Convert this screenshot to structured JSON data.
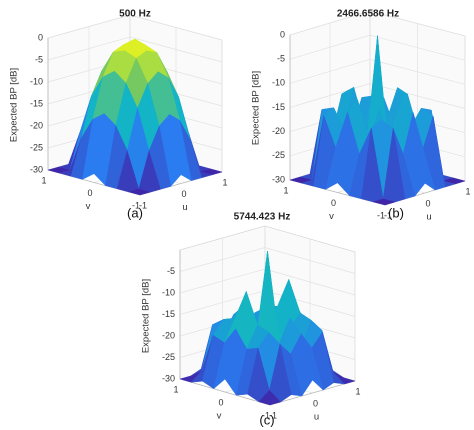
{
  "chart_data": [
    {
      "type": "surface",
      "title": "500 Hz",
      "caption": "(a)",
      "zlabel": "Expected BP [dB]",
      "xlabel": "u",
      "ylabel": "v",
      "xlim": [
        -1,
        1
      ],
      "ylim": [
        -1,
        1
      ],
      "zlim": [
        -30,
        0
      ],
      "xticks": [
        -1,
        0,
        1
      ],
      "yticks": [
        1,
        0,
        -1
      ],
      "zticks": [
        0,
        -5,
        -10,
        -15,
        -20,
        -25,
        -30
      ],
      "colormap": [
        "#3e26a8",
        "#2a7cf0",
        "#12b4c6",
        "#7dcb5a",
        "#f9fb15"
      ],
      "x": [
        -1,
        -0.75,
        -0.5,
        -0.25,
        0,
        0.25,
        0.5,
        0.75,
        1
      ],
      "y": [
        1,
        0.75,
        0.5,
        0.25,
        0,
        -0.25,
        -0.5,
        -0.75,
        -1
      ],
      "z": [
        [
          -30,
          -30,
          -30,
          -30,
          -28,
          -30,
          -30,
          -30,
          -30
        ],
        [
          -30,
          -30,
          -22,
          -17,
          -15,
          -17,
          -22,
          -30,
          -30
        ],
        [
          -30,
          -22,
          -13,
          -8,
          -6,
          -8,
          -13,
          -22,
          -30
        ],
        [
          -30,
          -17,
          -8,
          -3,
          -2,
          -3,
          -8,
          -17,
          -30
        ],
        [
          -28,
          -15,
          -6,
          -2,
          0,
          -2,
          -6,
          -15,
          -28
        ],
        [
          -30,
          -17,
          -8,
          -3,
          -2,
          -3,
          -8,
          -17,
          -30
        ],
        [
          -30,
          -22,
          -13,
          -8,
          -6,
          -8,
          -13,
          -22,
          -30
        ],
        [
          -30,
          -30,
          -22,
          -17,
          -15,
          -17,
          -22,
          -30,
          -30
        ],
        [
          -30,
          -30,
          -30,
          -30,
          -28,
          -30,
          -30,
          -30,
          -30
        ]
      ]
    },
    {
      "type": "surface",
      "title": "2466.6586 Hz",
      "caption": "(b)",
      "zlabel": "Expected BP [dB]",
      "xlabel": "u",
      "ylabel": "v",
      "xlim": [
        -1,
        1
      ],
      "ylim": [
        -1,
        1
      ],
      "zlim": [
        -30,
        0
      ],
      "xticks": [
        -1,
        0,
        1
      ],
      "yticks": [
        1,
        0,
        -1
      ],
      "zticks": [
        0,
        -5,
        -10,
        -15,
        -20,
        -25,
        -30
      ],
      "colormap": [
        "#3e26a8",
        "#2a7cf0",
        "#12b4c6",
        "#7dcb5a",
        "#f9fb15"
      ],
      "x": [
        -1,
        -0.75,
        -0.5,
        -0.25,
        0,
        0.25,
        0.5,
        0.75,
        1
      ],
      "y": [
        1,
        0.75,
        0.5,
        0.25,
        0,
        -0.25,
        -0.5,
        -0.75,
        -1
      ],
      "z": [
        [
          -30,
          -30,
          -30,
          -30,
          -28,
          -30,
          -30,
          -30,
          -30
        ],
        [
          -30,
          -30,
          -16,
          -22,
          -14,
          -22,
          -16,
          -30,
          -30
        ],
        [
          -30,
          -16,
          -15,
          -20,
          -12,
          -20,
          -15,
          -16,
          -30
        ],
        [
          -30,
          -22,
          -20,
          -14,
          -25,
          -14,
          -20,
          -22,
          -30
        ],
        [
          -28,
          -14,
          -12,
          -25,
          0,
          -25,
          -12,
          -14,
          -28
        ],
        [
          -30,
          -22,
          -20,
          -14,
          -25,
          -14,
          -20,
          -22,
          -30
        ],
        [
          -30,
          -16,
          -15,
          -20,
          -12,
          -20,
          -15,
          -16,
          -30
        ],
        [
          -30,
          -30,
          -16,
          -22,
          -14,
          -22,
          -16,
          -30,
          -30
        ],
        [
          -30,
          -30,
          -30,
          -30,
          -28,
          -30,
          -30,
          -30,
          -30
        ]
      ]
    },
    {
      "type": "surface",
      "title": "5744.423 Hz",
      "caption": "(c)",
      "zlabel": "Expected BP [dB]",
      "xlabel": "u",
      "ylabel": "v",
      "xlim": [
        -1,
        1
      ],
      "ylim": [
        -1,
        1
      ],
      "zlim": [
        -30,
        0
      ],
      "xticks": [
        -1,
        0,
        1
      ],
      "yticks": [
        1,
        0,
        -1
      ],
      "zticks": [
        -5,
        -10,
        -15,
        -20,
        -25,
        -30
      ],
      "colormap": [
        "#3e26a8",
        "#2a7cf0",
        "#12b4c6",
        "#7dcb5a",
        "#f9fb15"
      ],
      "x": [
        -1,
        -0.75,
        -0.5,
        -0.25,
        0,
        0.25,
        0.5,
        0.75,
        1
      ],
      "y": [
        1,
        0.75,
        0.5,
        0.25,
        0,
        -0.25,
        -0.5,
        -0.75,
        -1
      ],
      "z": [
        [
          -30,
          -30,
          -29,
          -30,
          -27,
          -30,
          -29,
          -30,
          -30
        ],
        [
          -30,
          -28,
          -18,
          -21,
          -17,
          -21,
          -18,
          -28,
          -30
        ],
        [
          -29,
          -19,
          -16,
          -22,
          -14,
          -22,
          -16,
          -19,
          -29
        ],
        [
          -30,
          -20,
          -15,
          -18,
          -21,
          -18,
          -15,
          -20,
          -30
        ],
        [
          -27,
          -16,
          -8,
          -20,
          0,
          -20,
          -8,
          -16,
          -27
        ],
        [
          -30,
          -20,
          -15,
          -18,
          -21,
          -18,
          -15,
          -20,
          -30
        ],
        [
          -29,
          -19,
          -16,
          -22,
          -14,
          -22,
          -16,
          -19,
          -29
        ],
        [
          -30,
          -28,
          -18,
          -21,
          -17,
          -21,
          -18,
          -28,
          -30
        ],
        [
          -30,
          -30,
          -29,
          -30,
          -27,
          -30,
          -29,
          -30,
          -30
        ]
      ]
    }
  ]
}
